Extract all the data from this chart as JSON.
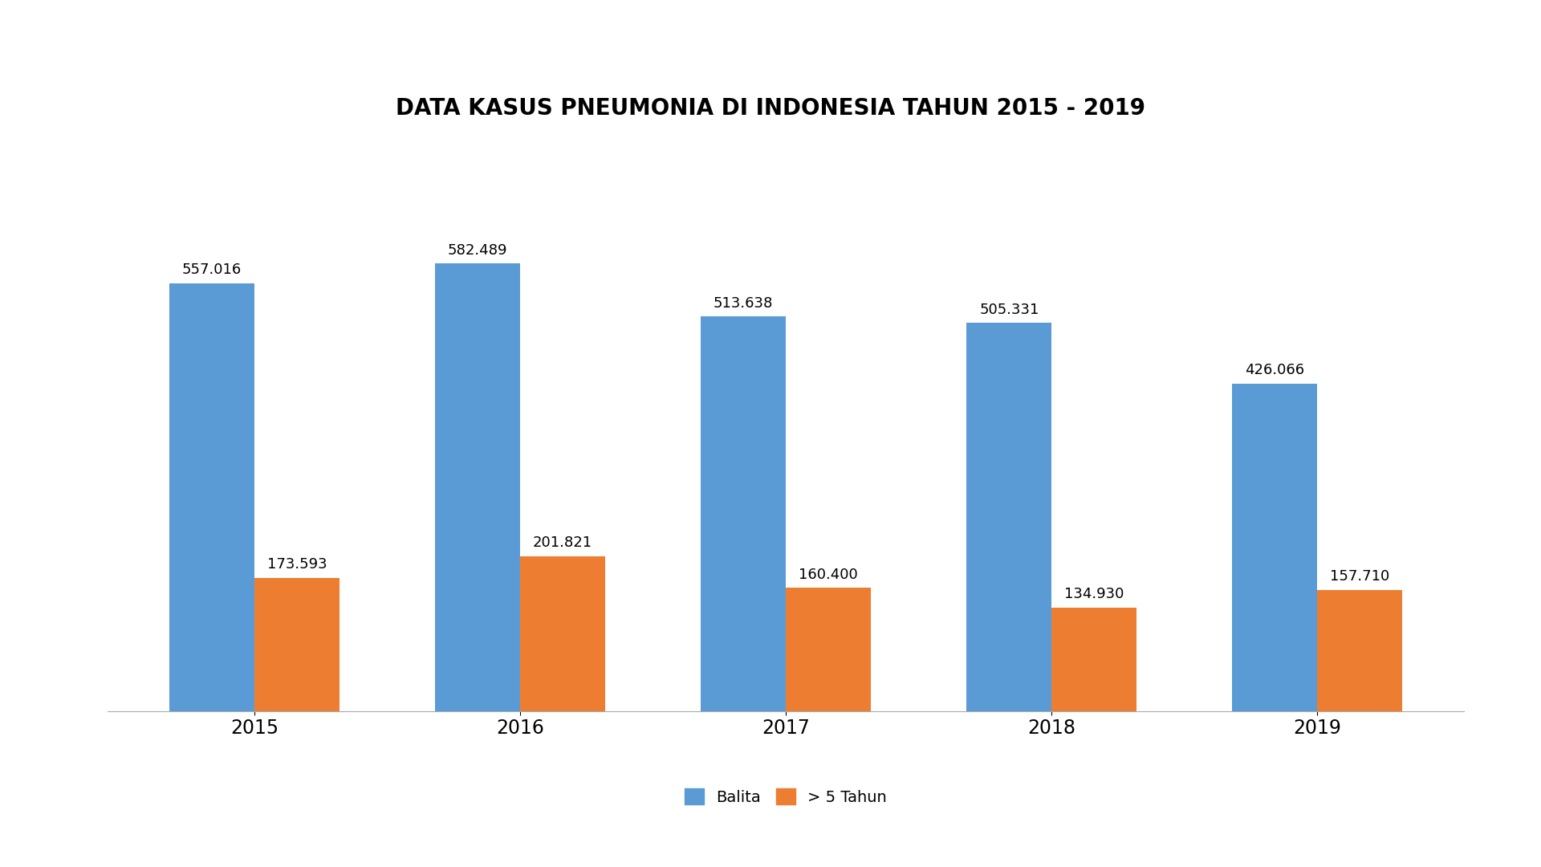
{
  "title": "DATA KASUS PNEUMONIA DI INDONESIA TAHUN 2015 - 2019",
  "years": [
    "2015",
    "2016",
    "2017",
    "2018",
    "2019"
  ],
  "balita": [
    557016,
    582489,
    513638,
    505331,
    426066
  ],
  "above5": [
    173593,
    201821,
    160400,
    134930,
    157710
  ],
  "balita_labels": [
    "557.016",
    "582.489",
    "513.638",
    "505.331",
    "426.066"
  ],
  "above5_labels": [
    "173.593",
    "201.821",
    "160.400",
    "134.930",
    "157.710"
  ],
  "balita_color": "#5B9BD5",
  "above5_color": "#ED7D31",
  "bar_width": 0.32,
  "title_fontsize": 20,
  "label_fontsize": 13,
  "tick_fontsize": 17,
  "legend_fontsize": 14,
  "background_color": "#FFFFFF",
  "ylim": [
    0,
    700000
  ],
  "legend_labels": [
    "Balita",
    "> 5 Tahun"
  ]
}
